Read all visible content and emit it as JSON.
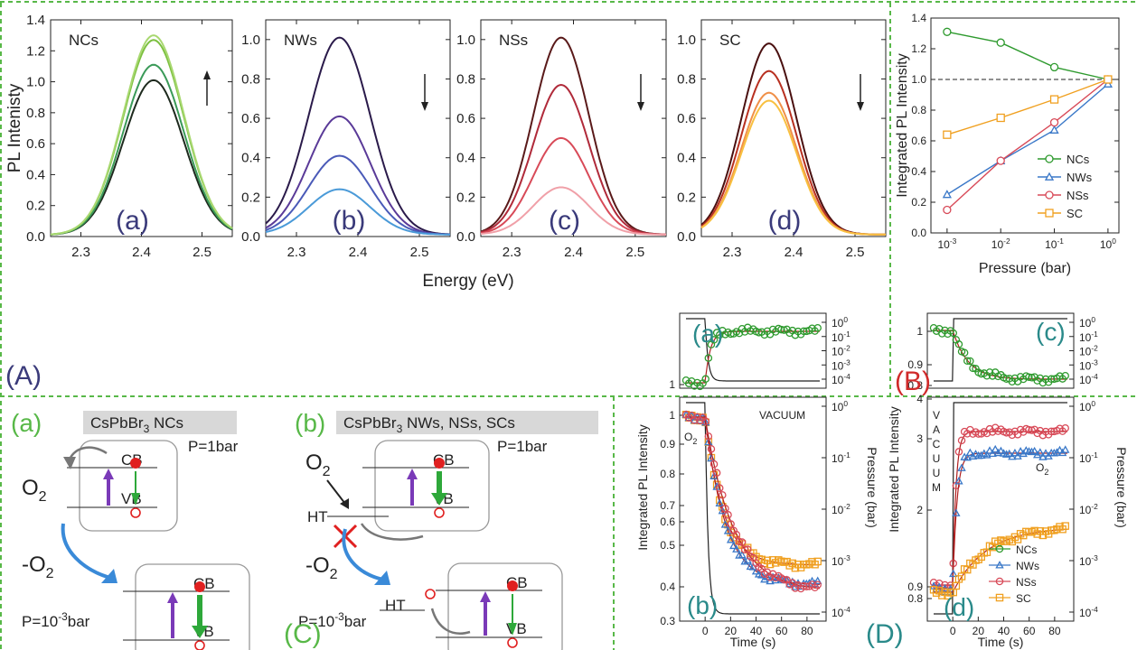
{
  "panel_letters": {
    "A": "(A)",
    "B": "(B)",
    "C": "(C)",
    "D": "(D)"
  },
  "colors": {
    "separator": "#58b848",
    "panel_A_letter": "#3a3a7a",
    "panel_B_letter": "#d02a2a",
    "panel_C_letter": "#58b848",
    "panel_D_letter": "#2a8a8a"
  },
  "chart_data": [
    {
      "id": "A-a",
      "type": "line",
      "panel": "(A)",
      "sublabel": "(a)",
      "title": "NCs",
      "ylabel": "PL Intenisty",
      "xlabel": "",
      "xlim": [
        2.25,
        2.55
      ],
      "ylim": [
        0,
        1.4
      ],
      "x_ticks": [
        "2.3",
        "2.4",
        "2.5"
      ],
      "y_ticks": [
        "0.0",
        "0.2",
        "0.4",
        "0.6",
        "0.8",
        "1.0",
        "1.2",
        "1.4"
      ],
      "arrow": "up",
      "peak_x": 2.42,
      "width": 0.05,
      "series": [
        {
          "color": "#1e2a1e",
          "peak": 1.0
        },
        {
          "color": "#3a9a58",
          "peak": 1.1
        },
        {
          "color": "#7cc040",
          "peak": 1.26
        },
        {
          "color": "#a8d870",
          "peak": 1.29
        }
      ]
    },
    {
      "id": "A-b",
      "type": "line",
      "sublabel": "(b)",
      "title": "NWs",
      "xlim": [
        2.25,
        2.55
      ],
      "ylim": [
        0,
        1.1
      ],
      "x_ticks": [
        "2.3",
        "2.4",
        "2.5"
      ],
      "y_ticks": [
        "0.0",
        "0.2",
        "0.4",
        "0.6",
        "0.8",
        "1.0"
      ],
      "arrow": "down",
      "peak_x": 2.37,
      "width": 0.05,
      "series": [
        {
          "color": "#2a1a4a",
          "peak": 1.0
        },
        {
          "color": "#5a3a98",
          "peak": 0.6
        },
        {
          "color": "#4a5ab8",
          "peak": 0.4
        },
        {
          "color": "#4a9ad8",
          "peak": 0.23
        }
      ]
    },
    {
      "id": "A-c",
      "type": "line",
      "sublabel": "(c)",
      "title": "NSs",
      "xlim": [
        2.25,
        2.55
      ],
      "ylim": [
        0,
        1.1
      ],
      "x_ticks": [
        "2.3",
        "2.4",
        "2.5"
      ],
      "y_ticks": [
        "0.0",
        "0.2",
        "0.4",
        "0.6",
        "0.8",
        "1.0"
      ],
      "arrow": "down",
      "peak_x": 2.38,
      "width": 0.045,
      "series": [
        {
          "color": "#5a1a1a",
          "peak": 1.0
        },
        {
          "color": "#b02a3a",
          "peak": 0.76
        },
        {
          "color": "#d84a58",
          "peak": 0.49
        },
        {
          "color": "#f0a0a8",
          "peak": 0.24
        }
      ]
    },
    {
      "id": "A-d",
      "type": "line",
      "sublabel": "(d)",
      "title": "SC",
      "xlim": [
        2.25,
        2.55
      ],
      "ylim": [
        0,
        1.1
      ],
      "x_ticks": [
        "2.3",
        "2.4",
        "2.5"
      ],
      "y_ticks": [
        "0.0",
        "0.2",
        "0.4",
        "0.6",
        "0.8",
        "1.0"
      ],
      "arrow": "down",
      "peak_x": 2.36,
      "width": 0.045,
      "shared_xlabel": "Energy (eV)",
      "series": [
        {
          "color": "#4a1010",
          "peak": 0.97
        },
        {
          "color": "#b83020",
          "peak": 0.83
        },
        {
          "color": "#f09048",
          "peak": 0.72
        },
        {
          "color": "#f8c040",
          "peak": 0.68
        }
      ]
    },
    {
      "id": "B",
      "type": "line",
      "panel": "(B)",
      "xlabel": "Pressure (bar)",
      "ylabel": "Integrated PL Intensity",
      "xscale": "log",
      "xlim": [
        0.0005,
        1.6
      ],
      "ylim": [
        0,
        1.4
      ],
      "x": [
        0.001,
        0.01,
        0.1,
        1
      ],
      "x_ticks": [
        {
          "base": "10",
          "exp": "-3"
        },
        {
          "base": "10",
          "exp": "-2"
        },
        {
          "base": "10",
          "exp": "-1"
        },
        {
          "base": "10",
          "exp": "0"
        }
      ],
      "y_ticks": [
        "0.0",
        "0.2",
        "0.4",
        "0.6",
        "0.8",
        "1.0",
        "1.2",
        "1.4"
      ],
      "reference_line": 1.0,
      "legend_position": "bottom-right",
      "series": [
        {
          "name": "NCs",
          "color": "#2e9a2e",
          "marker": "circle",
          "values": [
            1.31,
            1.24,
            1.08,
            1.0
          ]
        },
        {
          "name": "NWs",
          "color": "#3a78c8",
          "marker": "triangle",
          "values": [
            0.25,
            0.47,
            0.67,
            0.97
          ]
        },
        {
          "name": "NSs",
          "color": "#d84a58",
          "marker": "circle",
          "values": [
            0.15,
            0.47,
            0.72,
            1.0
          ]
        },
        {
          "name": "SC",
          "color": "#f0a020",
          "marker": "square",
          "values": [
            0.64,
            0.75,
            0.87,
            1.0
          ]
        }
      ]
    },
    {
      "id": "D-a",
      "type": "scatter",
      "sublabel": "(a)",
      "xlim": [
        -20,
        95
      ],
      "y_ticks": [
        "1"
      ],
      "right_ticks": [
        {
          "base": "10",
          "exp": "0"
        },
        {
          "base": "10",
          "exp": "-1"
        },
        {
          "base": "10",
          "exp": "-2"
        },
        {
          "base": "10",
          "exp": "-3"
        },
        {
          "base": "10",
          "exp": "-4"
        }
      ],
      "description_series": "NCs"
    },
    {
      "id": "D-b",
      "type": "scatter",
      "sublabel": "(b)",
      "annotation": "VACUUM",
      "gas_label": "O",
      "ylabel": "Integrated PL Intensity",
      "right_ylabel": "Pressure (bar)",
      "xlabel": "Time (s)",
      "xlim": [
        -20,
        95
      ],
      "x_ticks": [
        "0",
        "20",
        "40",
        "60",
        "80"
      ],
      "y_ticks": [
        "1",
        "0.9",
        "0.8",
        "0.7",
        "0.6",
        "0.5",
        "0.4",
        "0.3"
      ],
      "right_ticks": [
        {
          "base": "10",
          "exp": "0"
        },
        {
          "base": "10",
          "exp": "-1"
        },
        {
          "base": "10",
          "exp": "-2"
        },
        {
          "base": "10",
          "exp": "-3"
        },
        {
          "base": "10",
          "exp": "-4"
        }
      ],
      "series": [
        {
          "name": "SC",
          "color": "#f0a020",
          "marker": "square",
          "final": 0.62
        },
        {
          "name": "NWs",
          "color": "#3a78c8",
          "marker": "triangle",
          "final": 0.4
        },
        {
          "name": "NSs",
          "color": "#d84a58",
          "marker": "circle",
          "final": 0.33
        }
      ]
    },
    {
      "id": "D-c",
      "type": "scatter",
      "sublabel": "(c)",
      "xlim": [
        -20,
        95
      ],
      "y_ticks": [
        "1",
        "0.9",
        "0.8"
      ],
      "right_ticks": [
        {
          "base": "10",
          "exp": "0"
        },
        {
          "base": "10",
          "exp": "-1"
        },
        {
          "base": "10",
          "exp": "-2"
        },
        {
          "base": "10",
          "exp": "-3"
        },
        {
          "base": "10",
          "exp": "-4"
        }
      ]
    },
    {
      "id": "D-d",
      "type": "scatter",
      "sublabel": "(d)",
      "annotation": "VACUUM",
      "gas_label": "O",
      "ylabel": "Integrated PL Intensity",
      "right_ylabel": "Pressure (bar)",
      "xlabel": "Time (s)",
      "xlim": [
        -20,
        95
      ],
      "x_ticks": [
        "0",
        "20",
        "40",
        "60",
        "80"
      ],
      "y_ticks": [
        "4",
        "3",
        "2",
        "0.9",
        "0.8"
      ],
      "right_ticks": [
        {
          "base": "10",
          "exp": "0"
        },
        {
          "base": "10",
          "exp": "-1"
        },
        {
          "base": "10",
          "exp": "-2"
        },
        {
          "base": "10",
          "exp": "-3"
        },
        {
          "base": "10",
          "exp": "-4"
        }
      ],
      "legend": [
        {
          "name": "NCs",
          "color": "#2e9a2e",
          "marker": "circle"
        },
        {
          "name": "NWs",
          "color": "#3a78c8",
          "marker": "triangle"
        },
        {
          "name": "NSs",
          "color": "#d84a58",
          "marker": "circle"
        },
        {
          "name": "SC",
          "color": "#f0a020",
          "marker": "square"
        }
      ]
    }
  ],
  "diagrams": {
    "C_a": {
      "sublabel": "(a)",
      "header": "CsPbBr",
      "header_sub": "3",
      "header_tail": " NCs",
      "pressure_top": "P=1bar",
      "pressure_bottom_pre": "P=10",
      "pressure_bottom_exp": "-3",
      "pressure_bottom_post": "bar",
      "cb": "CB",
      "vb": "VB",
      "gas": "O",
      "gas_sub": "2",
      "minus_gas": "-O"
    },
    "C_b": {
      "sublabel": "(b)",
      "header": "CsPbBr",
      "header_sub": "3",
      "header_tail": " NWs, NSs, SCs",
      "pressure_top": "P=1bar",
      "pressure_bottom_pre": "P=10",
      "pressure_bottom_exp": "-3",
      "pressure_bottom_post": "bar",
      "cb": "CB",
      "vb": "VB",
      "ht": "HT",
      "gas": "O",
      "gas_sub": "2",
      "minus_gas": "-O"
    }
  }
}
